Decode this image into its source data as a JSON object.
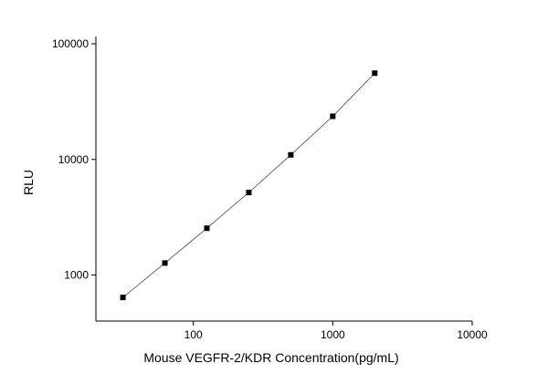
{
  "chart_data": {
    "type": "scatter",
    "x_label": "Mouse VEGFR-2/KDR Concentration(pg/mL)",
    "y_label": "RLU",
    "x": [
      31.25,
      62.5,
      125,
      250,
      500,
      1000,
      2000
    ],
    "series": [
      {
        "color": "#000000",
        "values": [
          640,
          1270,
          2540,
          5180,
          10950,
          23600,
          55700
        ]
      }
    ],
    "xlim": [
      20,
      10000
    ],
    "ylim": [
      400,
      100000
    ],
    "xticks": [
      100,
      1000,
      10000
    ],
    "yticks": [
      1000,
      10000,
      100000
    ],
    "xscale": "log",
    "yscale": "log",
    "grid": false,
    "fit_line": true
  }
}
